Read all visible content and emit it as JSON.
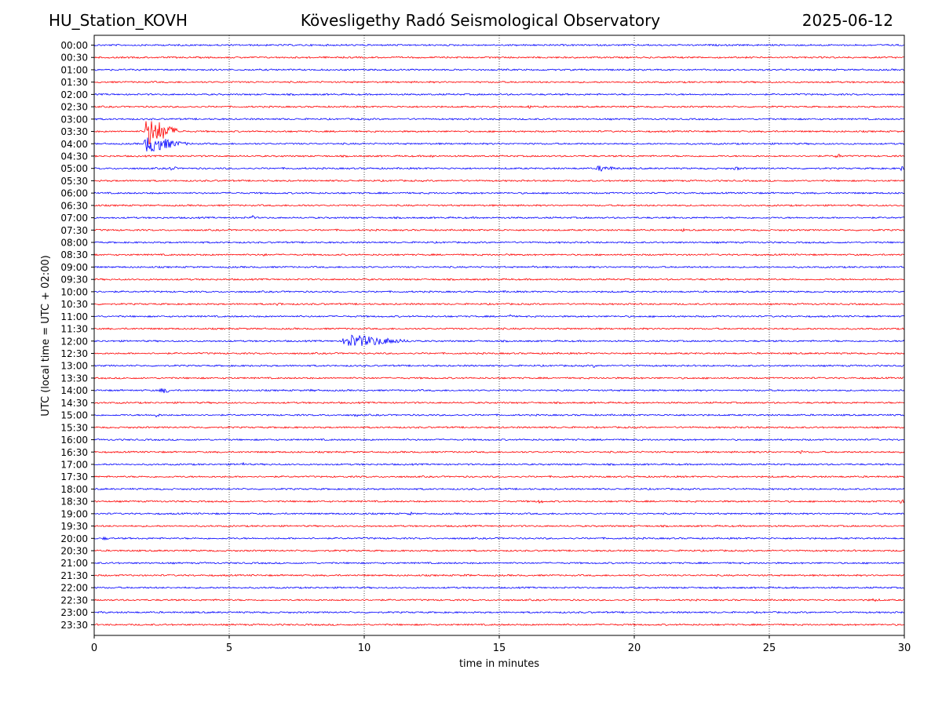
{
  "header": {
    "station": "HU_Station_KOVH",
    "observatory": "Kövesligethy Radó Seismological Observatory",
    "date": "2025-06-12"
  },
  "chart_data": {
    "type": "line",
    "title": "Kövesligethy Radó Seismological Observatory",
    "xlabel": "time in minutes",
    "ylabel": "UTC (local time = UTC + 02:00)",
    "xlim": [
      0,
      30
    ],
    "xticks": [
      0,
      5,
      10,
      15,
      20,
      25,
      30
    ],
    "grid": "vertical dotted lines at x = 5, 10, 15, 20, 25",
    "trace_colors": [
      "#0000ff",
      "#ff0000"
    ],
    "rows": [
      "00:00",
      "00:30",
      "01:00",
      "01:30",
      "02:00",
      "02:30",
      "03:00",
      "03:30",
      "04:00",
      "04:30",
      "05:00",
      "05:30",
      "06:00",
      "06:30",
      "07:00",
      "07:30",
      "08:00",
      "08:30",
      "09:00",
      "09:30",
      "10:00",
      "10:30",
      "11:00",
      "11:30",
      "12:00",
      "12:30",
      "13:00",
      "13:30",
      "14:00",
      "14:30",
      "15:00",
      "15:30",
      "16:00",
      "16:30",
      "17:00",
      "17:30",
      "18:00",
      "18:30",
      "19:00",
      "19:30",
      "20:00",
      "20:30",
      "21:00",
      "21:30",
      "22:00",
      "22:30",
      "23:00",
      "23:30"
    ],
    "events": [
      {
        "row": "02:30",
        "start_min": 16.0,
        "duration_min": 0.2,
        "amplitude": 3
      },
      {
        "row": "03:30",
        "start_min": 1.85,
        "duration_min": 1.8,
        "amplitude": 22
      },
      {
        "row": "04:00",
        "start_min": 1.85,
        "duration_min": 2.2,
        "amplitude": 13
      },
      {
        "row": "04:30",
        "start_min": 12.4,
        "duration_min": 0.2,
        "amplitude": 2
      },
      {
        "row": "04:30",
        "start_min": 27.3,
        "duration_min": 0.5,
        "amplitude": 2.5
      },
      {
        "row": "05:00",
        "start_min": 2.7,
        "duration_min": 0.4,
        "amplitude": 3
      },
      {
        "row": "05:00",
        "start_min": 18.6,
        "duration_min": 1.5,
        "amplitude": 4.5
      },
      {
        "row": "05:00",
        "start_min": 23.5,
        "duration_min": 0.6,
        "amplitude": 2
      },
      {
        "row": "05:00",
        "start_min": 29.8,
        "duration_min": 0.2,
        "amplitude": 3
      },
      {
        "row": "06:30",
        "start_min": 7.7,
        "duration_min": 0.2,
        "amplitude": 2.5
      },
      {
        "row": "07:00",
        "start_min": 5.7,
        "duration_min": 0.3,
        "amplitude": 3
      },
      {
        "row": "07:30",
        "start_min": 21.7,
        "duration_min": 0.2,
        "amplitude": 2
      },
      {
        "row": "08:30",
        "start_min": 6.2,
        "duration_min": 0.2,
        "amplitude": 2.5
      },
      {
        "row": "08:30",
        "start_min": 15.2,
        "duration_min": 0.2,
        "amplitude": 2
      },
      {
        "row": "09:00",
        "start_min": 16.2,
        "duration_min": 0.2,
        "amplitude": 2.5
      },
      {
        "row": "10:00",
        "start_min": 15.0,
        "duration_min": 1.8,
        "amplitude": 1.5
      },
      {
        "row": "10:30",
        "start_min": 6.7,
        "duration_min": 0.3,
        "amplitude": 2.5
      },
      {
        "row": "11:00",
        "start_min": 15.3,
        "duration_min": 0.2,
        "amplitude": 2.5
      },
      {
        "row": "12:00",
        "start_min": 9.2,
        "duration_min": 3.6,
        "amplitude": 10
      },
      {
        "row": "13:00",
        "start_min": 18.4,
        "duration_min": 0.2,
        "amplitude": 2.5
      },
      {
        "row": "14:00",
        "start_min": 2.3,
        "duration_min": 0.6,
        "amplitude": 3.5
      },
      {
        "row": "14:00",
        "start_min": 7.8,
        "duration_min": 0.6,
        "amplitude": 1.5
      },
      {
        "row": "15:00",
        "start_min": 2.1,
        "duration_min": 0.4,
        "amplitude": 2.5
      },
      {
        "row": "15:00",
        "start_min": 9.6,
        "duration_min": 0.2,
        "amplitude": 2.5
      },
      {
        "row": "16:30",
        "start_min": 24.9,
        "duration_min": 0.2,
        "amplitude": 2
      },
      {
        "row": "16:30",
        "start_min": 26.1,
        "duration_min": 0.2,
        "amplitude": 2.5
      },
      {
        "row": "17:00",
        "start_min": 5.3,
        "duration_min": 0.3,
        "amplitude": 3
      },
      {
        "row": "18:30",
        "start_min": 16.3,
        "duration_min": 0.4,
        "amplitude": 2.5
      },
      {
        "row": "18:30",
        "start_min": 28.6,
        "duration_min": 0.2,
        "amplitude": 2
      },
      {
        "row": "18:30",
        "start_min": 29.8,
        "duration_min": 0.2,
        "amplitude": 3
      },
      {
        "row": "19:00",
        "start_min": 11.6,
        "duration_min": 0.2,
        "amplitude": 2.5
      },
      {
        "row": "20:00",
        "start_min": 0.2,
        "duration_min": 0.4,
        "amplitude": 2
      },
      {
        "row": "21:30",
        "start_min": 13.5,
        "duration_min": 0.6,
        "amplitude": 1.5
      },
      {
        "row": "22:30",
        "start_min": 28.7,
        "duration_min": 1.2,
        "amplitude": 2.5
      },
      {
        "row": "23:00",
        "start_min": 0.1,
        "duration_min": 1.8,
        "amplitude": 1.5
      },
      {
        "row": "23:30",
        "start_min": 14.7,
        "duration_min": 0.3,
        "amplitude": 1.5
      }
    ]
  }
}
